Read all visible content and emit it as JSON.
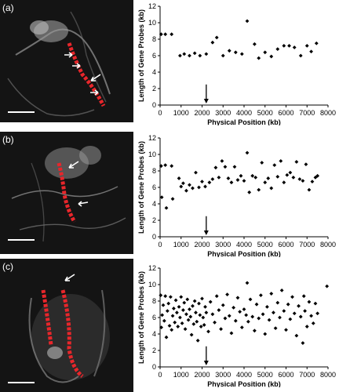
{
  "panels": [
    {
      "label": "(a)",
      "image": "fluorescence-micrograph-chromosome-red-probe"
    },
    {
      "label": "(b)",
      "image": "fluorescence-micrograph-chromosome-red-probe"
    },
    {
      "label": "(c)",
      "image": "fluorescence-micrograph-chromosome-red-probe"
    }
  ],
  "colors": {
    "probe_red": "#e8262b",
    "background": "#141414",
    "marker": "#000000"
  },
  "chart_data": [
    {
      "type": "scatter",
      "xlabel": "Physical Position (kb)",
      "ylabel": "Length of Gene Probes (kb)",
      "xlim": [
        0,
        8000
      ],
      "ylim": [
        0,
        12
      ],
      "xticks": [
        0,
        1000,
        2000,
        3000,
        4000,
        5000,
        6000,
        7000,
        8000
      ],
      "yticks": [
        0,
        2,
        4,
        6,
        8,
        10,
        12
      ],
      "arrow_x": 2200,
      "points": [
        [
          50,
          8.6
        ],
        [
          250,
          8.6
        ],
        [
          550,
          8.6
        ],
        [
          950,
          6.0
        ],
        [
          1150,
          6.2
        ],
        [
          1400,
          6.0
        ],
        [
          1650,
          6.3
        ],
        [
          1900,
          6.0
        ],
        [
          2200,
          6.2
        ],
        [
          2500,
          7.6
        ],
        [
          2700,
          8.2
        ],
        [
          3000,
          6.0
        ],
        [
          3300,
          6.6
        ],
        [
          3600,
          6.4
        ],
        [
          3900,
          6.2
        ],
        [
          4150,
          10.2
        ],
        [
          4500,
          7.4
        ],
        [
          4700,
          5.7
        ],
        [
          5000,
          6.4
        ],
        [
          5300,
          5.9
        ],
        [
          5600,
          6.8
        ],
        [
          5900,
          7.2
        ],
        [
          6150,
          7.2
        ],
        [
          6400,
          7.0
        ],
        [
          6700,
          6.0
        ],
        [
          7000,
          7.2
        ],
        [
          7200,
          6.5
        ],
        [
          7450,
          7.5
        ]
      ]
    },
    {
      "type": "scatter",
      "xlabel": "Physical Position (kb)",
      "ylabel": "Length of Gene Probes (kb)",
      "xlim": [
        0,
        8000
      ],
      "ylim": [
        0,
        12
      ],
      "xticks": [
        0,
        1000,
        2000,
        3000,
        4000,
        5000,
        6000,
        7000,
        8000
      ],
      "yticks": [
        0,
        2,
        4,
        6,
        8,
        10,
        12
      ],
      "arrow_x": 2200,
      "points": [
        [
          50,
          8.6
        ],
        [
          80,
          4.8
        ],
        [
          250,
          8.7
        ],
        [
          300,
          3.5
        ],
        [
          550,
          8.6
        ],
        [
          600,
          4.6
        ],
        [
          900,
          7.1
        ],
        [
          1000,
          6.1
        ],
        [
          1100,
          6.5
        ],
        [
          1250,
          5.6
        ],
        [
          1400,
          6.3
        ],
        [
          1550,
          5.9
        ],
        [
          1700,
          7.8
        ],
        [
          1850,
          6.0
        ],
        [
          2000,
          6.7
        ],
        [
          2150,
          6.1
        ],
        [
          2350,
          6.6
        ],
        [
          2500,
          7.0
        ],
        [
          2650,
          8.4
        ],
        [
          2800,
          7.2
        ],
        [
          2950,
          9.2
        ],
        [
          3100,
          8.5
        ],
        [
          3250,
          7.1
        ],
        [
          3400,
          6.6
        ],
        [
          3550,
          8.5
        ],
        [
          3700,
          6.9
        ],
        [
          3850,
          7.4
        ],
        [
          4000,
          6.8
        ],
        [
          4150,
          10.2
        ],
        [
          4250,
          5.4
        ],
        [
          4400,
          7.4
        ],
        [
          4550,
          7.2
        ],
        [
          4700,
          5.7
        ],
        [
          4850,
          9.0
        ],
        [
          5000,
          6.6
        ],
        [
          5150,
          7.1
        ],
        [
          5300,
          5.9
        ],
        [
          5450,
          8.7
        ],
        [
          5600,
          7.3
        ],
        [
          5750,
          9.2
        ],
        [
          5900,
          6.6
        ],
        [
          6050,
          7.5
        ],
        [
          6200,
          7.8
        ],
        [
          6350,
          7.2
        ],
        [
          6500,
          9.1
        ],
        [
          6650,
          7.0
        ],
        [
          6800,
          6.8
        ],
        [
          6950,
          8.8
        ],
        [
          7100,
          5.7
        ],
        [
          7250,
          6.7
        ],
        [
          7400,
          7.2
        ],
        [
          7500,
          7.4
        ]
      ]
    },
    {
      "type": "scatter",
      "xlabel": "Physical Position (kb)",
      "ylabel": "Length of Gene Probes (kb)",
      "xlim": [
        0,
        8000
      ],
      "ylim": [
        0,
        12
      ],
      "xticks": [
        0,
        1000,
        2000,
        3000,
        4000,
        5000,
        6000,
        7000,
        8000
      ],
      "yticks": [
        0,
        2,
        4,
        6,
        8,
        10,
        12
      ],
      "arrow_x": 2200,
      "points": [
        [
          30,
          8.7
        ],
        [
          60,
          4.8
        ],
        [
          100,
          6.3
        ],
        [
          150,
          7.5
        ],
        [
          200,
          5.6
        ],
        [
          250,
          8.6
        ],
        [
          300,
          3.6
        ],
        [
          350,
          6.8
        ],
        [
          400,
          7.7
        ],
        [
          450,
          5.0
        ],
        [
          500,
          8.5
        ],
        [
          550,
          4.5
        ],
        [
          600,
          6.2
        ],
        [
          650,
          7.1
        ],
        [
          700,
          5.4
        ],
        [
          750,
          8.1
        ],
        [
          800,
          6.6
        ],
        [
          850,
          4.9
        ],
        [
          900,
          7.3
        ],
        [
          950,
          6.0
        ],
        [
          1000,
          8.5
        ],
        [
          1050,
          5.3
        ],
        [
          1100,
          6.9
        ],
        [
          1150,
          7.8
        ],
        [
          1200,
          4.6
        ],
        [
          1250,
          6.4
        ],
        [
          1300,
          8.2
        ],
        [
          1350,
          5.7
        ],
        [
          1400,
          7.0
        ],
        [
          1450,
          6.1
        ],
        [
          1500,
          3.9
        ],
        [
          1550,
          7.4
        ],
        [
          1600,
          5.2
        ],
        [
          1650,
          8.0
        ],
        [
          1700,
          6.6
        ],
        [
          1750,
          5.5
        ],
        [
          1800,
          3.2
        ],
        [
          1850,
          7.7
        ],
        [
          1900,
          6.3
        ],
        [
          1950,
          4.9
        ],
        [
          2000,
          8.3
        ],
        [
          2050,
          6.0
        ],
        [
          2100,
          5.1
        ],
        [
          2150,
          7.3
        ],
        [
          2200,
          6.6
        ],
        [
          2300,
          4.3
        ],
        [
          2400,
          7.9
        ],
        [
          2500,
          6.4
        ],
        [
          2600,
          5.4
        ],
        [
          2700,
          8.6
        ],
        [
          2800,
          6.9
        ],
        [
          2900,
          4.6
        ],
        [
          3000,
          7.5
        ],
        [
          3100,
          5.9
        ],
        [
          3200,
          8.8
        ],
        [
          3300,
          6.2
        ],
        [
          3400,
          4.1
        ],
        [
          3500,
          7.2
        ],
        [
          3600,
          5.6
        ],
        [
          3700,
          8.4
        ],
        [
          3800,
          6.7
        ],
        [
          3900,
          4.8
        ],
        [
          4000,
          7.0
        ],
        [
          4100,
          6.3
        ],
        [
          4150,
          10.2
        ],
        [
          4200,
          5.5
        ],
        [
          4300,
          8.2
        ],
        [
          4400,
          6.1
        ],
        [
          4500,
          4.4
        ],
        [
          4600,
          7.6
        ],
        [
          4700,
          5.9
        ],
        [
          4800,
          8.7
        ],
        [
          4900,
          6.4
        ],
        [
          5000,
          4.0
        ],
        [
          5100,
          7.3
        ],
        [
          5200,
          5.7
        ],
        [
          5300,
          8.9
        ],
        [
          5400,
          6.6
        ],
        [
          5500,
          4.7
        ],
        [
          5600,
          7.8
        ],
        [
          5700,
          6.0
        ],
        [
          5800,
          9.3
        ],
        [
          5900,
          6.8
        ],
        [
          6000,
          4.5
        ],
        [
          6100,
          7.6
        ],
        [
          6200,
          5.8
        ],
        [
          6300,
          8.5
        ],
        [
          6400,
          6.5
        ],
        [
          6500,
          3.8
        ],
        [
          6600,
          7.4
        ],
        [
          6700,
          6.1
        ],
        [
          6800,
          2.9
        ],
        [
          6850,
          8.6
        ],
        [
          6900,
          6.8
        ],
        [
          7000,
          4.9
        ],
        [
          7100,
          7.9
        ],
        [
          7200,
          6.2
        ],
        [
          7300,
          5.3
        ],
        [
          7400,
          7.7
        ],
        [
          7500,
          6.5
        ],
        [
          7950,
          9.8
        ]
      ]
    }
  ]
}
